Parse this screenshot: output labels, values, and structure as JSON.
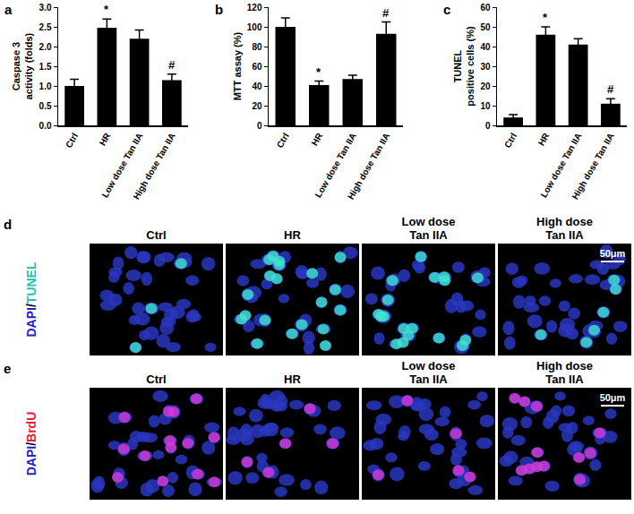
{
  "chart_data": [
    {
      "panel": "a",
      "type": "bar",
      "categories": [
        "Ctrl",
        "HR",
        "Low dose Tan IIA",
        "High dose Tan IIA"
      ],
      "values": [
        1.0,
        2.48,
        2.2,
        1.15
      ],
      "errors": [
        0.17,
        0.22,
        0.22,
        0.15
      ],
      "color": "#000000",
      "ylabel": [
        "Caspase 3",
        "activity (folds)"
      ],
      "ylim": [
        0,
        3
      ],
      "yticks": [
        {
          "value": 0,
          "label": "0.0"
        },
        {
          "value": 0.5,
          "label": "0.5"
        },
        {
          "value": 1,
          "label": "1.0"
        },
        {
          "value": 1.5,
          "label": "1.5"
        },
        {
          "value": 2,
          "label": "2.0"
        },
        {
          "value": 2.5,
          "label": "2.5"
        },
        {
          "value": 3,
          "label": "3.0"
        }
      ],
      "grid": false,
      "annotations": [
        {
          "category": "HR",
          "text": "*"
        },
        {
          "category": "High dose Tan IIA",
          "text": "#"
        }
      ]
    },
    {
      "panel": "b",
      "type": "bar",
      "categories": [
        "Ctrl",
        "HR",
        "Low dose Tan IIA",
        "High dose Tan IIA"
      ],
      "values": [
        100,
        41,
        47,
        93
      ],
      "errors": [
        9,
        4,
        4,
        12
      ],
      "color": "#000000",
      "ylabel": [
        "MTT assay (%)"
      ],
      "ylim": [
        0,
        120
      ],
      "yticks": [
        0,
        20,
        40,
        60,
        80,
        100,
        120
      ],
      "grid": false,
      "annotations": [
        {
          "category": "HR",
          "text": "*"
        },
        {
          "category": "High dose Tan IIA",
          "text": "#"
        }
      ]
    },
    {
      "panel": "c",
      "type": "bar",
      "categories": [
        "Ctrl",
        "HR",
        "Low dose Tan IIA",
        "High dose Tan IIA"
      ],
      "values": [
        4,
        46,
        41,
        11
      ],
      "errors": [
        1.5,
        4,
        3,
        2.5
      ],
      "color": "#000000",
      "ylabel": [
        "TUNEL",
        "positive cells (%)"
      ],
      "ylim": [
        0,
        60
      ],
      "yticks": [
        0,
        10,
        20,
        30,
        40,
        50,
        60
      ],
      "grid": false,
      "annotations": [
        {
          "category": "HR",
          "text": "*"
        },
        {
          "category": "High dose Tan IIA",
          "text": "#"
        }
      ]
    }
  ],
  "image_panels": [
    {
      "panel": "d",
      "side_label": [
        "DAPI",
        "/",
        "TUNEL"
      ],
      "columns": [
        [
          "Ctrl"
        ],
        [
          "HR"
        ],
        [
          "Low dose",
          "Tan IIA"
        ],
        [
          "High dose",
          "Tan IIA"
        ]
      ],
      "scale_bar": "50μm"
    },
    {
      "panel": "e",
      "side_label": [
        "DAPI",
        "/",
        "BrdU"
      ],
      "columns": [
        [
          "Ctrl"
        ],
        [
          "HR"
        ],
        [
          "Low dose",
          "Tan IIA"
        ],
        [
          "High dose",
          "Tan IIA"
        ]
      ],
      "scale_bar": "50μm"
    }
  ]
}
